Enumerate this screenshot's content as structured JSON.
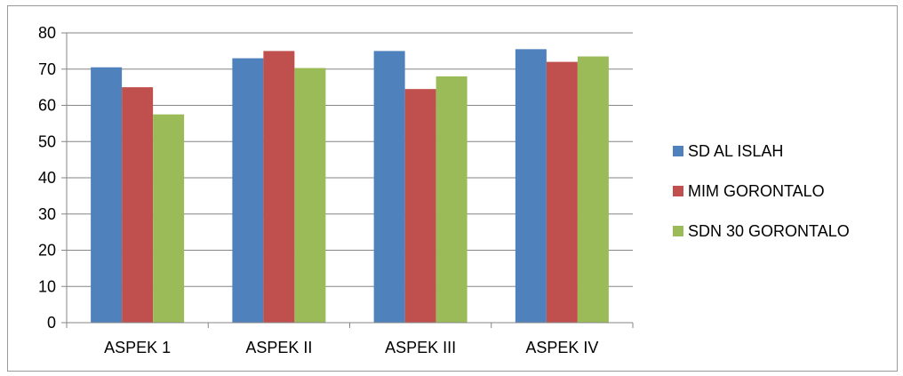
{
  "chart_data": {
    "type": "bar",
    "categories": [
      "ASPEK 1",
      "ASPEK II",
      "ASPEK III",
      "ASPEK IV"
    ],
    "series": [
      {
        "name": "SD AL ISLAH",
        "values": [
          70.5,
          73,
          75,
          75.5
        ],
        "color": "#4f81bd"
      },
      {
        "name": "MIM GORONTALO",
        "values": [
          65,
          75,
          64.5,
          72
        ],
        "color": "#c0504d"
      },
      {
        "name": "SDN 30 GORONTALO",
        "values": [
          57.5,
          70.3,
          68,
          73.5
        ],
        "color": "#9bbb59"
      }
    ],
    "ylim": [
      0,
      80
    ],
    "yticks": [
      0,
      10,
      20,
      30,
      40,
      50,
      60,
      70,
      80
    ],
    "grid": true,
    "legend_position": "right",
    "title": "",
    "xlabel": "",
    "ylabel": ""
  }
}
